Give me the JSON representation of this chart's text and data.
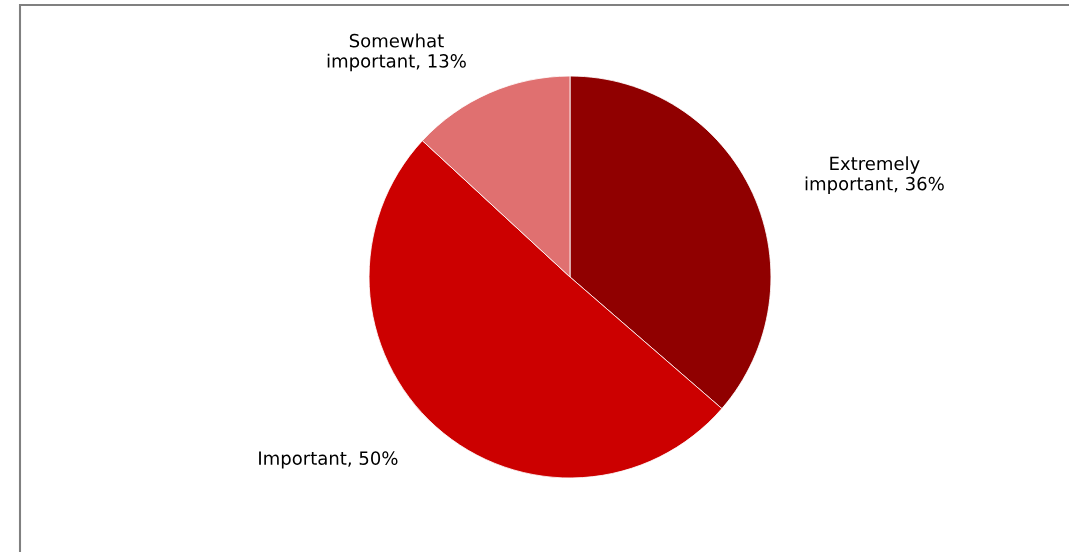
{
  "chart_data": {
    "type": "pie",
    "categories": [
      "Extremely important",
      "Important",
      "Somewhat important"
    ],
    "values": [
      36,
      50,
      13
    ],
    "colors": [
      "#900000",
      "#cc0000",
      "#e07070"
    ],
    "value_labels": [
      "36%",
      "50%",
      "13%"
    ],
    "legend": false
  }
}
